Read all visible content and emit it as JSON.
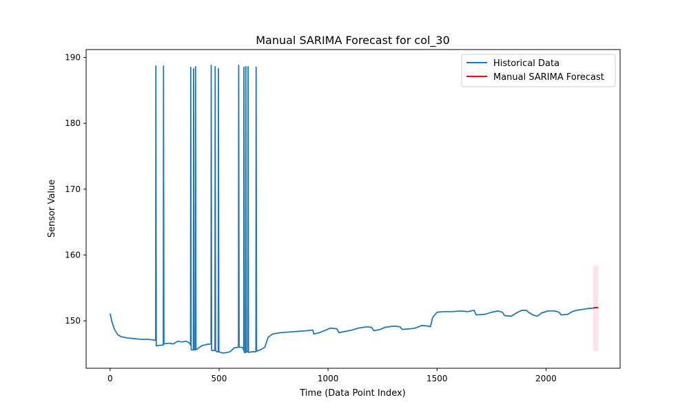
{
  "chart_data": {
    "type": "line",
    "title": "Manual SARIMA Forecast for col_30",
    "xlabel": "Time (Data Point Index)",
    "ylabel": "Sensor Value",
    "xlim": [
      -110,
      2340
    ],
    "ylim": [
      142.8,
      191.2
    ],
    "xticks": [
      0,
      500,
      1000,
      1500,
      2000
    ],
    "yticks": [
      150,
      160,
      170,
      180,
      190
    ],
    "grid": false,
    "legend": "top-right",
    "series": [
      {
        "name": "Historical Data",
        "color": "#1f77b4",
        "points": [
          [
            0,
            151.1
          ],
          [
            8,
            149.9
          ],
          [
            20,
            148.7
          ],
          [
            35,
            147.9
          ],
          [
            50,
            147.6
          ],
          [
            80,
            147.4
          ],
          [
            110,
            147.3
          ],
          [
            140,
            147.2
          ],
          [
            170,
            147.2
          ],
          [
            200,
            147.1
          ],
          [
            209,
            147.0
          ],
          [
            210,
            188.7
          ],
          [
            212,
            146.2
          ],
          [
            230,
            146.3
          ],
          [
            244,
            146.3
          ],
          [
            245,
            188.7
          ],
          [
            247,
            146.5
          ],
          [
            270,
            146.6
          ],
          [
            290,
            146.5
          ],
          [
            310,
            146.9
          ],
          [
            330,
            146.8
          ],
          [
            350,
            146.9
          ],
          [
            365,
            146.6
          ],
          [
            369,
            146.3
          ],
          [
            370,
            188.5
          ],
          [
            372,
            145.6
          ],
          [
            380,
            145.6
          ],
          [
            382,
            145.6
          ],
          [
            383,
            188.3
          ],
          [
            385,
            145.6
          ],
          [
            390,
            145.6
          ],
          [
            391,
            145.6
          ],
          [
            392,
            188.6
          ],
          [
            394,
            145.6
          ],
          [
            420,
            146.2
          ],
          [
            440,
            146.4
          ],
          [
            462,
            146.5
          ],
          [
            463,
            146.5
          ],
          [
            464,
            188.8
          ],
          [
            466,
            145.5
          ],
          [
            470,
            145.5
          ],
          [
            481,
            145.5
          ],
          [
            482,
            188.6
          ],
          [
            484,
            145.5
          ],
          [
            490,
            145.3
          ],
          [
            496,
            145.3
          ],
          [
            497,
            188.3
          ],
          [
            499,
            145.3
          ],
          [
            520,
            145.1
          ],
          [
            550,
            145.3
          ],
          [
            570,
            145.9
          ],
          [
            589,
            146.0
          ],
          [
            590,
            188.8
          ],
          [
            592,
            146.0
          ],
          [
            600,
            146.0
          ],
          [
            610,
            145.9
          ],
          [
            613,
            145.5
          ],
          [
            614,
            188.5
          ],
          [
            616,
            145.2
          ],
          [
            622,
            145.2
          ],
          [
            623,
            188.6
          ],
          [
            625,
            145.3
          ],
          [
            632,
            145.3
          ],
          [
            633,
            188.6
          ],
          [
            635,
            145.2
          ],
          [
            650,
            145.3
          ],
          [
            668,
            145.3
          ],
          [
            669,
            145.3
          ],
          [
            670,
            188.5
          ],
          [
            672,
            145.4
          ],
          [
            690,
            145.6
          ],
          [
            710,
            146.0
          ],
          [
            725,
            147.5
          ],
          [
            745,
            148.0
          ],
          [
            780,
            148.2
          ],
          [
            820,
            148.3
          ],
          [
            860,
            148.4
          ],
          [
            900,
            148.5
          ],
          [
            930,
            148.6
          ],
          [
            935,
            148.0
          ],
          [
            960,
            148.2
          ],
          [
            990,
            148.6
          ],
          [
            1010,
            148.9
          ],
          [
            1040,
            148.8
          ],
          [
            1050,
            148.2
          ],
          [
            1080,
            148.4
          ],
          [
            1110,
            148.6
          ],
          [
            1140,
            148.9
          ],
          [
            1180,
            149.1
          ],
          [
            1200,
            149.0
          ],
          [
            1210,
            148.5
          ],
          [
            1240,
            148.7
          ],
          [
            1260,
            149.0
          ],
          [
            1300,
            149.2
          ],
          [
            1330,
            149.1
          ],
          [
            1340,
            148.7
          ],
          [
            1380,
            148.8
          ],
          [
            1400,
            148.9
          ],
          [
            1430,
            149.3
          ],
          [
            1460,
            149.2
          ],
          [
            1470,
            149.1
          ],
          [
            1480,
            150.5
          ],
          [
            1500,
            151.3
          ],
          [
            1530,
            151.4
          ],
          [
            1570,
            151.4
          ],
          [
            1610,
            151.5
          ],
          [
            1640,
            151.4
          ],
          [
            1670,
            151.6
          ],
          [
            1680,
            150.9
          ],
          [
            1720,
            151.0
          ],
          [
            1750,
            151.3
          ],
          [
            1780,
            151.5
          ],
          [
            1800,
            151.3
          ],
          [
            1810,
            150.8
          ],
          [
            1840,
            150.7
          ],
          [
            1870,
            151.3
          ],
          [
            1890,
            151.6
          ],
          [
            1910,
            151.6
          ],
          [
            1920,
            151.3
          ],
          [
            1940,
            150.9
          ],
          [
            1960,
            150.7
          ],
          [
            1980,
            151.2
          ],
          [
            2010,
            151.5
          ],
          [
            2040,
            151.5
          ],
          [
            2060,
            151.3
          ],
          [
            2070,
            150.9
          ],
          [
            2100,
            151.0
          ],
          [
            2120,
            151.4
          ],
          [
            2140,
            151.6
          ],
          [
            2160,
            151.7
          ],
          [
            2180,
            151.8
          ],
          [
            2200,
            151.9
          ],
          [
            2215,
            151.9
          ]
        ]
      },
      {
        "name": "Manual SARIMA Forecast",
        "color": "#ff0000",
        "points": [
          [
            2216,
            151.9
          ],
          [
            2222,
            152.0
          ],
          [
            2230,
            152.0
          ],
          [
            2240,
            152.0
          ]
        ],
        "interval": {
          "color": "#ffc0cb",
          "x": [
            2216,
            2240
          ],
          "upper": [
            158.3,
            158.4
          ],
          "lower": [
            145.4,
            145.4
          ]
        }
      }
    ]
  }
}
